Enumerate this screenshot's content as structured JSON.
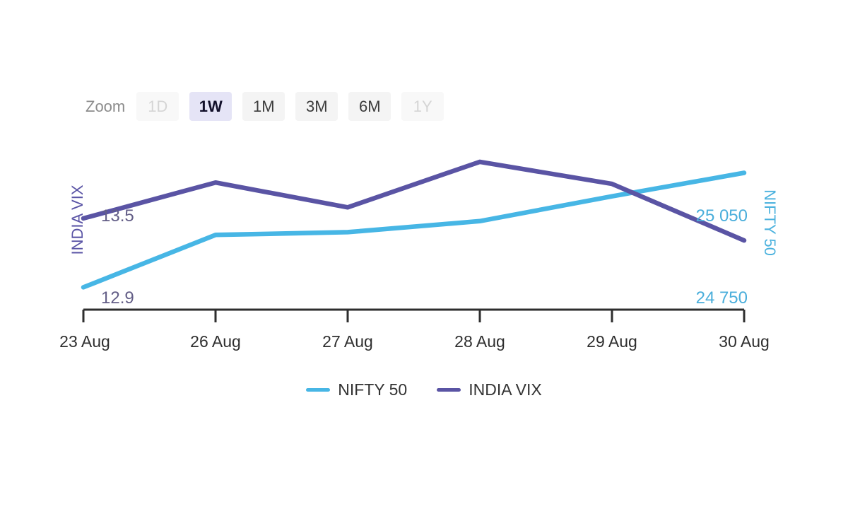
{
  "toolbar": {
    "label": "Zoom",
    "buttons": [
      {
        "label": "1D",
        "state": "disabled"
      },
      {
        "label": "1W",
        "state": "active"
      },
      {
        "label": "1M",
        "state": "normal"
      },
      {
        "label": "3M",
        "state": "normal"
      },
      {
        "label": "6M",
        "state": "normal"
      },
      {
        "label": "1Y",
        "state": "disabled"
      }
    ]
  },
  "chart_data": {
    "type": "line",
    "categories": [
      "23 Aug",
      "26 Aug",
      "27 Aug",
      "28 Aug",
      "29 Aug",
      "30 Aug"
    ],
    "series": [
      {
        "name": "NIFTY 50",
        "axis": "right",
        "color": "#47b6e5",
        "values": [
          24790,
          24980,
          24990,
          25030,
          25120,
          25205
        ]
      },
      {
        "name": "INDIA VIX",
        "axis": "left",
        "color": "#5a54a4",
        "values": [
          13.48,
          13.74,
          13.56,
          13.89,
          13.73,
          13.32
        ]
      }
    ],
    "left_axis": {
      "title": "INDIA VIX",
      "tick_labels": [
        "13.5",
        "12.9"
      ],
      "tick_values": [
        13.5,
        12.9
      ],
      "range": [
        12.8,
        14.0
      ]
    },
    "right_axis": {
      "title": "NIFTY 50",
      "tick_labels": [
        "25 050",
        "24 750"
      ],
      "tick_values": [
        25050,
        24750
      ],
      "range": [
        24700,
        25300
      ]
    },
    "legend": [
      "NIFTY 50",
      "INDIA VIX"
    ],
    "legend_position": "bottom",
    "grid": false
  },
  "colors": {
    "nifty_line": "#47b6e5",
    "vix_line": "#5a54a4",
    "nifty_axis_text": "#4aaedb",
    "vix_axis_text": "#635e87",
    "axis_stroke": "#2e2e2e",
    "active_button_bg": "#e5e4f6",
    "background": "#ffffff"
  }
}
